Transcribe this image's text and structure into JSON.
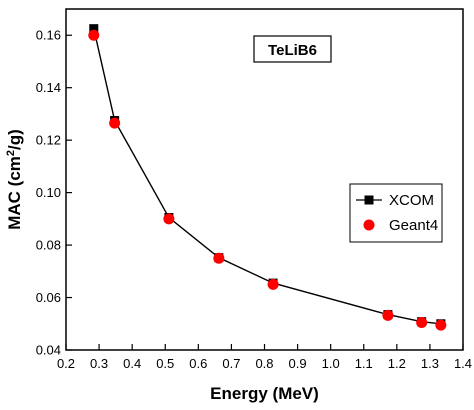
{
  "chart_data": {
    "type": "scatter",
    "title": "",
    "xlabel": "Energy (MeV)",
    "ylabel": "MAC (cm²/g)",
    "ylabel_parts": {
      "before": "MAC (cm",
      "sup": "2",
      "after": "/g)"
    },
    "xlim": [
      0.2,
      1.4
    ],
    "ylim": [
      0.04,
      0.17
    ],
    "xticks": [
      "0.2",
      "0.3",
      "0.4",
      "0.5",
      "0.6",
      "0.7",
      "0.8",
      "0.9",
      "1.0",
      "1.1",
      "1.2",
      "1.3",
      "1.4"
    ],
    "yticks": [
      "0.04",
      "0.06",
      "0.08",
      "0.10",
      "0.12",
      "0.14",
      "0.16"
    ],
    "grid": false,
    "legend_position": "right-middle",
    "annotation": "TeLiB6",
    "series": [
      {
        "name": "XCOM",
        "marker": "square",
        "color": "#000000",
        "line": true,
        "x": [
          0.284,
          0.347,
          0.511,
          0.662,
          0.826,
          1.173,
          1.275,
          1.333
        ],
        "y": [
          0.1625,
          0.1275,
          0.0905,
          0.0752,
          0.0655,
          0.0535,
          0.0508,
          0.05
        ]
      },
      {
        "name": "Geant4",
        "marker": "circle",
        "color": "#ff0000",
        "line": false,
        "x": [
          0.284,
          0.347,
          0.511,
          0.662,
          0.826,
          1.173,
          1.275,
          1.333
        ],
        "y": [
          0.16,
          0.1265,
          0.09,
          0.075,
          0.065,
          0.0532,
          0.0505,
          0.0495
        ]
      }
    ]
  }
}
